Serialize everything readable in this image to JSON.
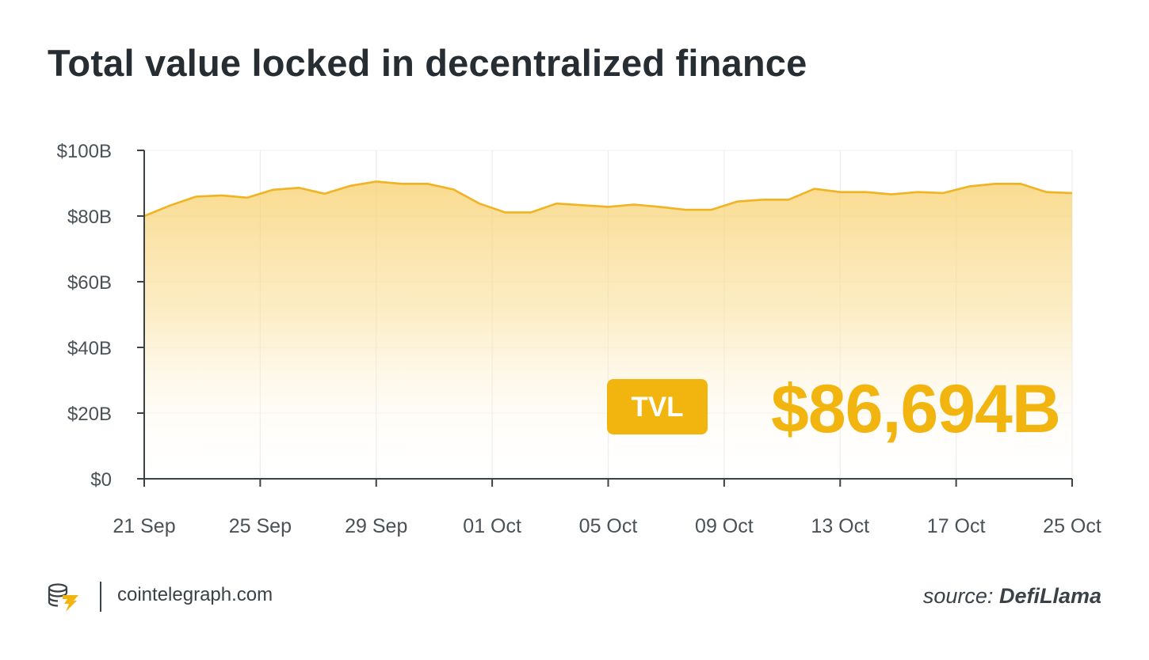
{
  "title": "Total value locked in decentralized finance",
  "badge": {
    "label": "TVL",
    "value": "$86,694B"
  },
  "footer": {
    "site": "cointelegraph.com",
    "source_prefix": "source:",
    "source_name": "DefiLlama"
  },
  "colors": {
    "accent": "#f2b50f",
    "line": "#f1b322",
    "text": "#2d3338",
    "grid": "#e8e8e8"
  },
  "icons": {
    "logo": "cointelegraph-logo-icon"
  },
  "chart_data": {
    "type": "area",
    "title": "Total value locked in decentralized finance",
    "xlabel": "",
    "ylabel": "",
    "ylim": [
      0,
      100
    ],
    "y_unit": "$B",
    "y_ticks": [
      "$0",
      "$20B",
      "$40B",
      "$60B",
      "$80B",
      "$100B"
    ],
    "x_ticks": [
      "21 Sep",
      "25 Sep",
      "29 Sep",
      "01 Oct",
      "05 Oct",
      "09 Oct",
      "13 Oct",
      "17 Oct",
      "25 Oct"
    ],
    "grid": "vertical",
    "series": [
      {
        "values": [
          80.0,
          83.2,
          85.9,
          86.3,
          85.6,
          88.0,
          88.6,
          86.8,
          89.2,
          90.5,
          89.8,
          89.8,
          88.1,
          83.8,
          81.1,
          81.1,
          83.8,
          83.3,
          82.8,
          83.5,
          82.8,
          81.9,
          81.9,
          84.4,
          85.0,
          85.0,
          88.3,
          87.3,
          87.3,
          86.6,
          87.3,
          87.0,
          89.0,
          89.8,
          89.8,
          87.3,
          87.0
        ]
      }
    ]
  }
}
